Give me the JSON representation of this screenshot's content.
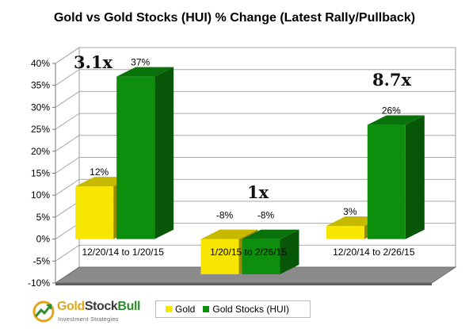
{
  "chart_data": {
    "type": "bar",
    "title": "Gold vs Gold Stocks (HUI) % Change (Latest Rally/Pullback)",
    "categories": [
      "12/20/14 to 1/20/15",
      "1/20/15 to 2/26/15",
      "12/20/14 to 2/26/15"
    ],
    "series": [
      {
        "name": "Gold",
        "color": "#f7e700",
        "values": [
          12,
          -8,
          3
        ],
        "labels": [
          "12%",
          "-8%",
          "3%"
        ]
      },
      {
        "name": "Gold Stocks (HUI)",
        "color": "#0d8f0d",
        "values": [
          37,
          -8,
          26
        ],
        "labels": [
          "37%",
          "-8%",
          "26%"
        ]
      }
    ],
    "ylim": [
      -10,
      40
    ],
    "yticks": [
      -10,
      -5,
      0,
      5,
      10,
      15,
      20,
      25,
      30,
      35,
      40
    ],
    "ytick_labels": [
      "-10%",
      "-5%",
      "0%",
      "5%",
      "10%",
      "15%",
      "20%",
      "25%",
      "30%",
      "35%",
      "40%"
    ],
    "grid": true,
    "legend_position": "bottom",
    "xlabel": "",
    "ylabel": "",
    "annotations": [
      "3.1x",
      "1x",
      "8.7x"
    ]
  },
  "logo": {
    "name_part1": "Gold",
    "name_part2": "Stock",
    "name_part3": "Bull",
    "tagline": "Investment Strategies",
    "colors": {
      "gold": "#e3a51c",
      "green": "#2e8b2e",
      "dark": "#3a3a3a"
    }
  }
}
